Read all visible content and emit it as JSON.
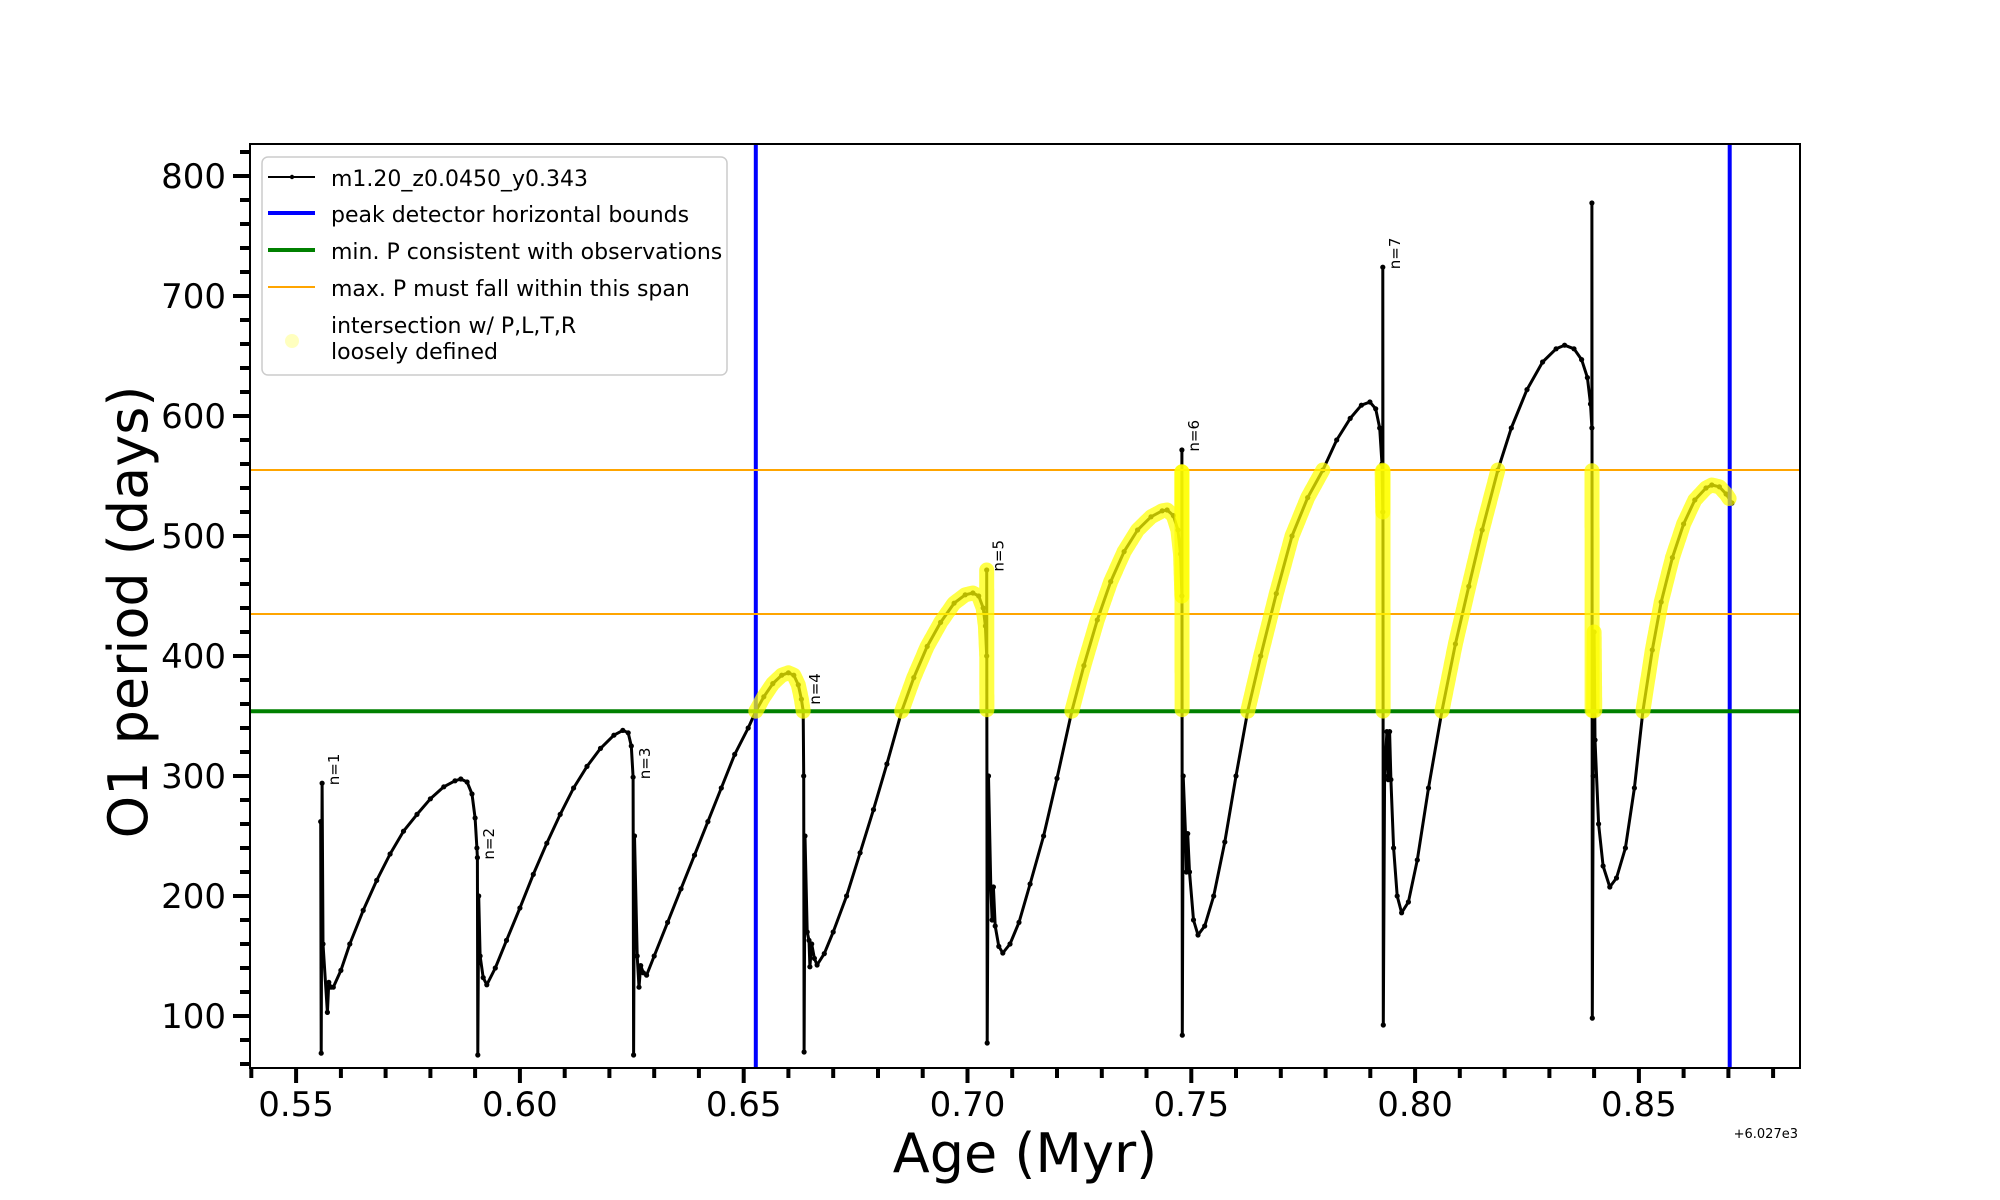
{
  "chart_data": {
    "type": "line",
    "title": "",
    "xlabel": "Age (Myr)",
    "ylabel": "O1 period (days)",
    "x_offset_label": "+6.027e3",
    "xlim": [
      0.5397,
      0.886
    ],
    "ylim": [
      56.7,
      826.7
    ],
    "grid": false,
    "xticks": [
      0.55,
      0.6,
      0.65,
      0.7,
      0.75,
      0.8,
      0.85
    ],
    "xtick_labels": [
      "0.55",
      "0.60",
      "0.65",
      "0.70",
      "0.75",
      "0.80",
      "0.85"
    ],
    "x_minor_step": 0.01,
    "yticks": [
      100,
      200,
      300,
      400,
      500,
      600,
      700,
      800
    ],
    "ytick_labels": [
      "100",
      "200",
      "300",
      "400",
      "500",
      "600",
      "700",
      "800"
    ],
    "y_minor_step": 20,
    "legend": {
      "placement": "upper-left",
      "entries": [
        {
          "label": "m1.20_z0.0450_y0.343",
          "kind": "line-with-marker",
          "color": "#000000"
        },
        {
          "label": "peak detector horizontal bounds",
          "kind": "line",
          "color": "#0000ff"
        },
        {
          "label": "min. P consistent with observations",
          "kind": "line",
          "color": "#008000"
        },
        {
          "label": "max. P must fall within this span",
          "kind": "line",
          "color": "#ffa500"
        },
        {
          "label_lines": [
            "intersection w/ P,L,T,R",
            "loosely defined"
          ],
          "kind": "marker",
          "color": "#ffff00"
        }
      ]
    },
    "series": [
      {
        "legend_index": 0,
        "color": "#000000",
        "points": [
          [
            0.5555,
            262
          ],
          [
            0.5556,
            69
          ],
          [
            0.5558,
            294
          ],
          [
            0.556,
            160
          ],
          [
            0.557,
            103
          ],
          [
            0.5573,
            128
          ],
          [
            0.5578,
            124
          ],
          [
            0.5583,
            124
          ],
          [
            0.56,
            138
          ],
          [
            0.562,
            160
          ],
          [
            0.565,
            188
          ],
          [
            0.568,
            213
          ],
          [
            0.571,
            235
          ],
          [
            0.574,
            254
          ],
          [
            0.577,
            268
          ],
          [
            0.58,
            281
          ],
          [
            0.583,
            291
          ],
          [
            0.5855,
            296
          ],
          [
            0.5868,
            297.5
          ],
          [
            0.5882,
            295
          ],
          [
            0.5893,
            285
          ],
          [
            0.59,
            265
          ],
          [
            0.5904,
            240
          ],
          [
            0.5905,
            232
          ],
          [
            0.5906,
            67.5
          ],
          [
            0.5908,
            200
          ],
          [
            0.5911,
            150
          ],
          [
            0.5918,
            132
          ],
          [
            0.5926,
            126
          ],
          [
            0.5945,
            140
          ],
          [
            0.597,
            163
          ],
          [
            0.6,
            190
          ],
          [
            0.603,
            218
          ],
          [
            0.606,
            244
          ],
          [
            0.609,
            268
          ],
          [
            0.612,
            290
          ],
          [
            0.615,
            308
          ],
          [
            0.618,
            323
          ],
          [
            0.621,
            334
          ],
          [
            0.623,
            338
          ],
          [
            0.6242,
            336
          ],
          [
            0.6249,
            325
          ],
          [
            0.6253,
            299
          ],
          [
            0.6254,
            67.5
          ],
          [
            0.6256,
            250
          ],
          [
            0.6262,
            150
          ],
          [
            0.6266,
            124
          ],
          [
            0.627,
            142
          ],
          [
            0.6276,
            136
          ],
          [
            0.6283,
            134
          ],
          [
            0.63,
            150
          ],
          [
            0.633,
            178
          ],
          [
            0.636,
            206
          ],
          [
            0.639,
            234
          ],
          [
            0.642,
            262
          ],
          [
            0.645,
            290
          ],
          [
            0.648,
            318
          ],
          [
            0.651,
            340
          ],
          [
            0.6527,
            354
          ],
          [
            0.6545,
            366
          ],
          [
            0.6565,
            377
          ],
          [
            0.6585,
            384
          ],
          [
            0.66,
            386
          ],
          [
            0.6612,
            384
          ],
          [
            0.6622,
            376
          ],
          [
            0.6629,
            364
          ],
          [
            0.6633,
            354
          ],
          [
            0.6634,
            300
          ],
          [
            0.6635,
            70
          ],
          [
            0.6637,
            250
          ],
          [
            0.6642,
            170
          ],
          [
            0.6646,
            163
          ],
          [
            0.6648,
            141
          ],
          [
            0.6652,
            160
          ],
          [
            0.6658,
            148
          ],
          [
            0.6664,
            142.5
          ],
          [
            0.668,
            152
          ],
          [
            0.67,
            170
          ],
          [
            0.673,
            200
          ],
          [
            0.676,
            236
          ],
          [
            0.679,
            272
          ],
          [
            0.682,
            310
          ],
          [
            0.6853,
            354
          ],
          [
            0.688,
            382
          ],
          [
            0.691,
            408
          ],
          [
            0.694,
            428
          ],
          [
            0.697,
            444
          ],
          [
            0.6995,
            451
          ],
          [
            0.7012,
            452.5
          ],
          [
            0.7025,
            450
          ],
          [
            0.7035,
            440
          ],
          [
            0.704,
            425
          ],
          [
            0.7043,
            400
          ],
          [
            0.7043,
            471.7
          ],
          [
            0.7044,
            77.5
          ],
          [
            0.7047,
            300
          ],
          [
            0.7052,
            207.5
          ],
          [
            0.7055,
            180
          ],
          [
            0.7058,
            207.5
          ],
          [
            0.7062,
            175
          ],
          [
            0.707,
            158
          ],
          [
            0.7079,
            152.5
          ],
          [
            0.7095,
            160
          ],
          [
            0.7115,
            178
          ],
          [
            0.714,
            210
          ],
          [
            0.717,
            250
          ],
          [
            0.72,
            298
          ],
          [
            0.7233,
            354
          ],
          [
            0.726,
            392
          ],
          [
            0.729,
            430
          ],
          [
            0.732,
            462
          ],
          [
            0.735,
            487
          ],
          [
            0.738,
            505
          ],
          [
            0.741,
            516
          ],
          [
            0.7435,
            521
          ],
          [
            0.7446,
            521.7
          ],
          [
            0.746,
            517
          ],
          [
            0.747,
            505
          ],
          [
            0.7476,
            485
          ],
          [
            0.7479,
            450
          ],
          [
            0.7479,
            571.7
          ],
          [
            0.748,
            84
          ],
          [
            0.7482,
            300
          ],
          [
            0.7487,
            252
          ],
          [
            0.7489,
            220
          ],
          [
            0.7492,
            252
          ],
          [
            0.7496,
            220
          ],
          [
            0.7505,
            180
          ],
          [
            0.7515,
            167.5
          ],
          [
            0.753,
            175
          ],
          [
            0.755,
            200
          ],
          [
            0.7575,
            245
          ],
          [
            0.76,
            300
          ],
          [
            0.7626,
            354
          ],
          [
            0.7655,
            400
          ],
          [
            0.769,
            452
          ],
          [
            0.7725,
            500
          ],
          [
            0.776,
            532
          ],
          [
            0.7794,
            555
          ],
          [
            0.7825,
            580
          ],
          [
            0.7855,
            598
          ],
          [
            0.788,
            609
          ],
          [
            0.7899,
            611.7
          ],
          [
            0.7912,
            606
          ],
          [
            0.7921,
            590
          ],
          [
            0.7926,
            560
          ],
          [
            0.7928,
            520
          ],
          [
            0.7928,
            724
          ],
          [
            0.7929,
            92.5
          ],
          [
            0.7932,
            300
          ],
          [
            0.7937,
            337
          ],
          [
            0.794,
            297
          ],
          [
            0.7943,
            337
          ],
          [
            0.7946,
            297
          ],
          [
            0.7952,
            240
          ],
          [
            0.796,
            200
          ],
          [
            0.797,
            186
          ],
          [
            0.7985,
            195
          ],
          [
            0.8005,
            230
          ],
          [
            0.803,
            290
          ],
          [
            0.806,
            354
          ],
          [
            0.809,
            410
          ],
          [
            0.812,
            458
          ],
          [
            0.815,
            505
          ],
          [
            0.8185,
            555
          ],
          [
            0.8215,
            590
          ],
          [
            0.825,
            622
          ],
          [
            0.8285,
            645
          ],
          [
            0.8315,
            656
          ],
          [
            0.8334,
            659
          ],
          [
            0.8355,
            656
          ],
          [
            0.8372,
            647
          ],
          [
            0.8385,
            632
          ],
          [
            0.8392,
            610
          ],
          [
            0.8395,
            590
          ],
          [
            0.8395,
            777.5
          ],
          [
            0.8396,
            98.3
          ],
          [
            0.8398,
            300
          ],
          [
            0.84,
            420
          ],
          [
            0.8402,
            330
          ],
          [
            0.841,
            260
          ],
          [
            0.842,
            225
          ],
          [
            0.8435,
            207.5
          ],
          [
            0.845,
            215
          ],
          [
            0.847,
            240
          ],
          [
            0.849,
            290
          ],
          [
            0.8509,
            354
          ],
          [
            0.853,
            405
          ],
          [
            0.855,
            445
          ],
          [
            0.8575,
            482
          ],
          [
            0.86,
            510
          ],
          [
            0.8625,
            530
          ],
          [
            0.865,
            540
          ],
          [
            0.8663,
            542.5
          ],
          [
            0.868,
            541
          ],
          [
            0.8695,
            535
          ],
          [
            0.8708,
            527.5
          ]
        ]
      }
    ],
    "vlines": {
      "legend_index": 1,
      "x": [
        0.6527,
        0.8703
      ],
      "color": "#0000ff"
    },
    "hlines": [
      {
        "legend_index": 2,
        "y": [
          354
        ],
        "color": "#008000"
      },
      {
        "legend_index": 3,
        "y": [
          435,
          555
        ],
        "color": "#ffa500"
      }
    ],
    "highlight": {
      "legend_index": 4,
      "x_range": [
        0.6527,
        0.8703
      ],
      "y_range": [
        354,
        555
      ],
      "color": "#ffff00"
    },
    "annotations": [
      {
        "text": "n=1",
        "x": 0.5558,
        "y": 294
      },
      {
        "text": "n=2",
        "x": 0.5904,
        "y": 232
      },
      {
        "text": "n=3",
        "x": 0.6253,
        "y": 299
      },
      {
        "text": "n=4",
        "x": 0.6633,
        "y": 361
      },
      {
        "text": "n=5",
        "x": 0.7043,
        "y": 472
      },
      {
        "text": "n=6",
        "x": 0.7479,
        "y": 572
      },
      {
        "text": "n=7",
        "x": 0.7928,
        "y": 724
      }
    ]
  }
}
